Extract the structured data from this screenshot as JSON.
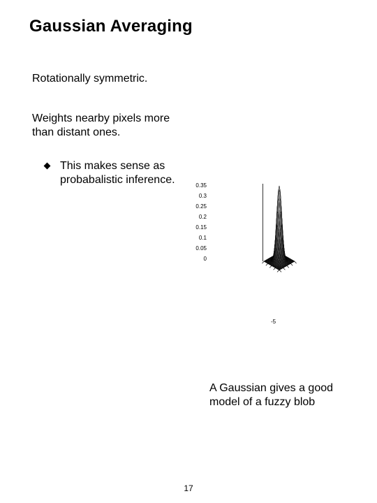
{
  "title": "Gaussian Averaging",
  "para1": "Rotationally symmetric.",
  "para2": "Weights nearby pixels more than distant ones.",
  "bullet1": "This makes sense as probabalistic inference.",
  "caption": "A Gaussian gives a good model of a fuzzy blob",
  "page_number": "17",
  "figure": {
    "type": "3d-surface",
    "function": "2D Gaussian",
    "z_ticks": [
      "0",
      "0.05",
      "0.1",
      "0.15",
      "0.2",
      "0.25",
      "0.3",
      "0.35"
    ],
    "x_domain": [
      -5,
      5
    ],
    "y_domain": [
      -5,
      5
    ],
    "sigma": 1.2,
    "peak_z": 0.35,
    "surface_color_top": "#f2f2f2",
    "surface_color_side": "#e6e6e6",
    "wire_color": "#000000",
    "base_fill": "#060606",
    "tick_fontsize": 8,
    "axis_tick_label": "-5",
    "background": "#ffffff"
  }
}
